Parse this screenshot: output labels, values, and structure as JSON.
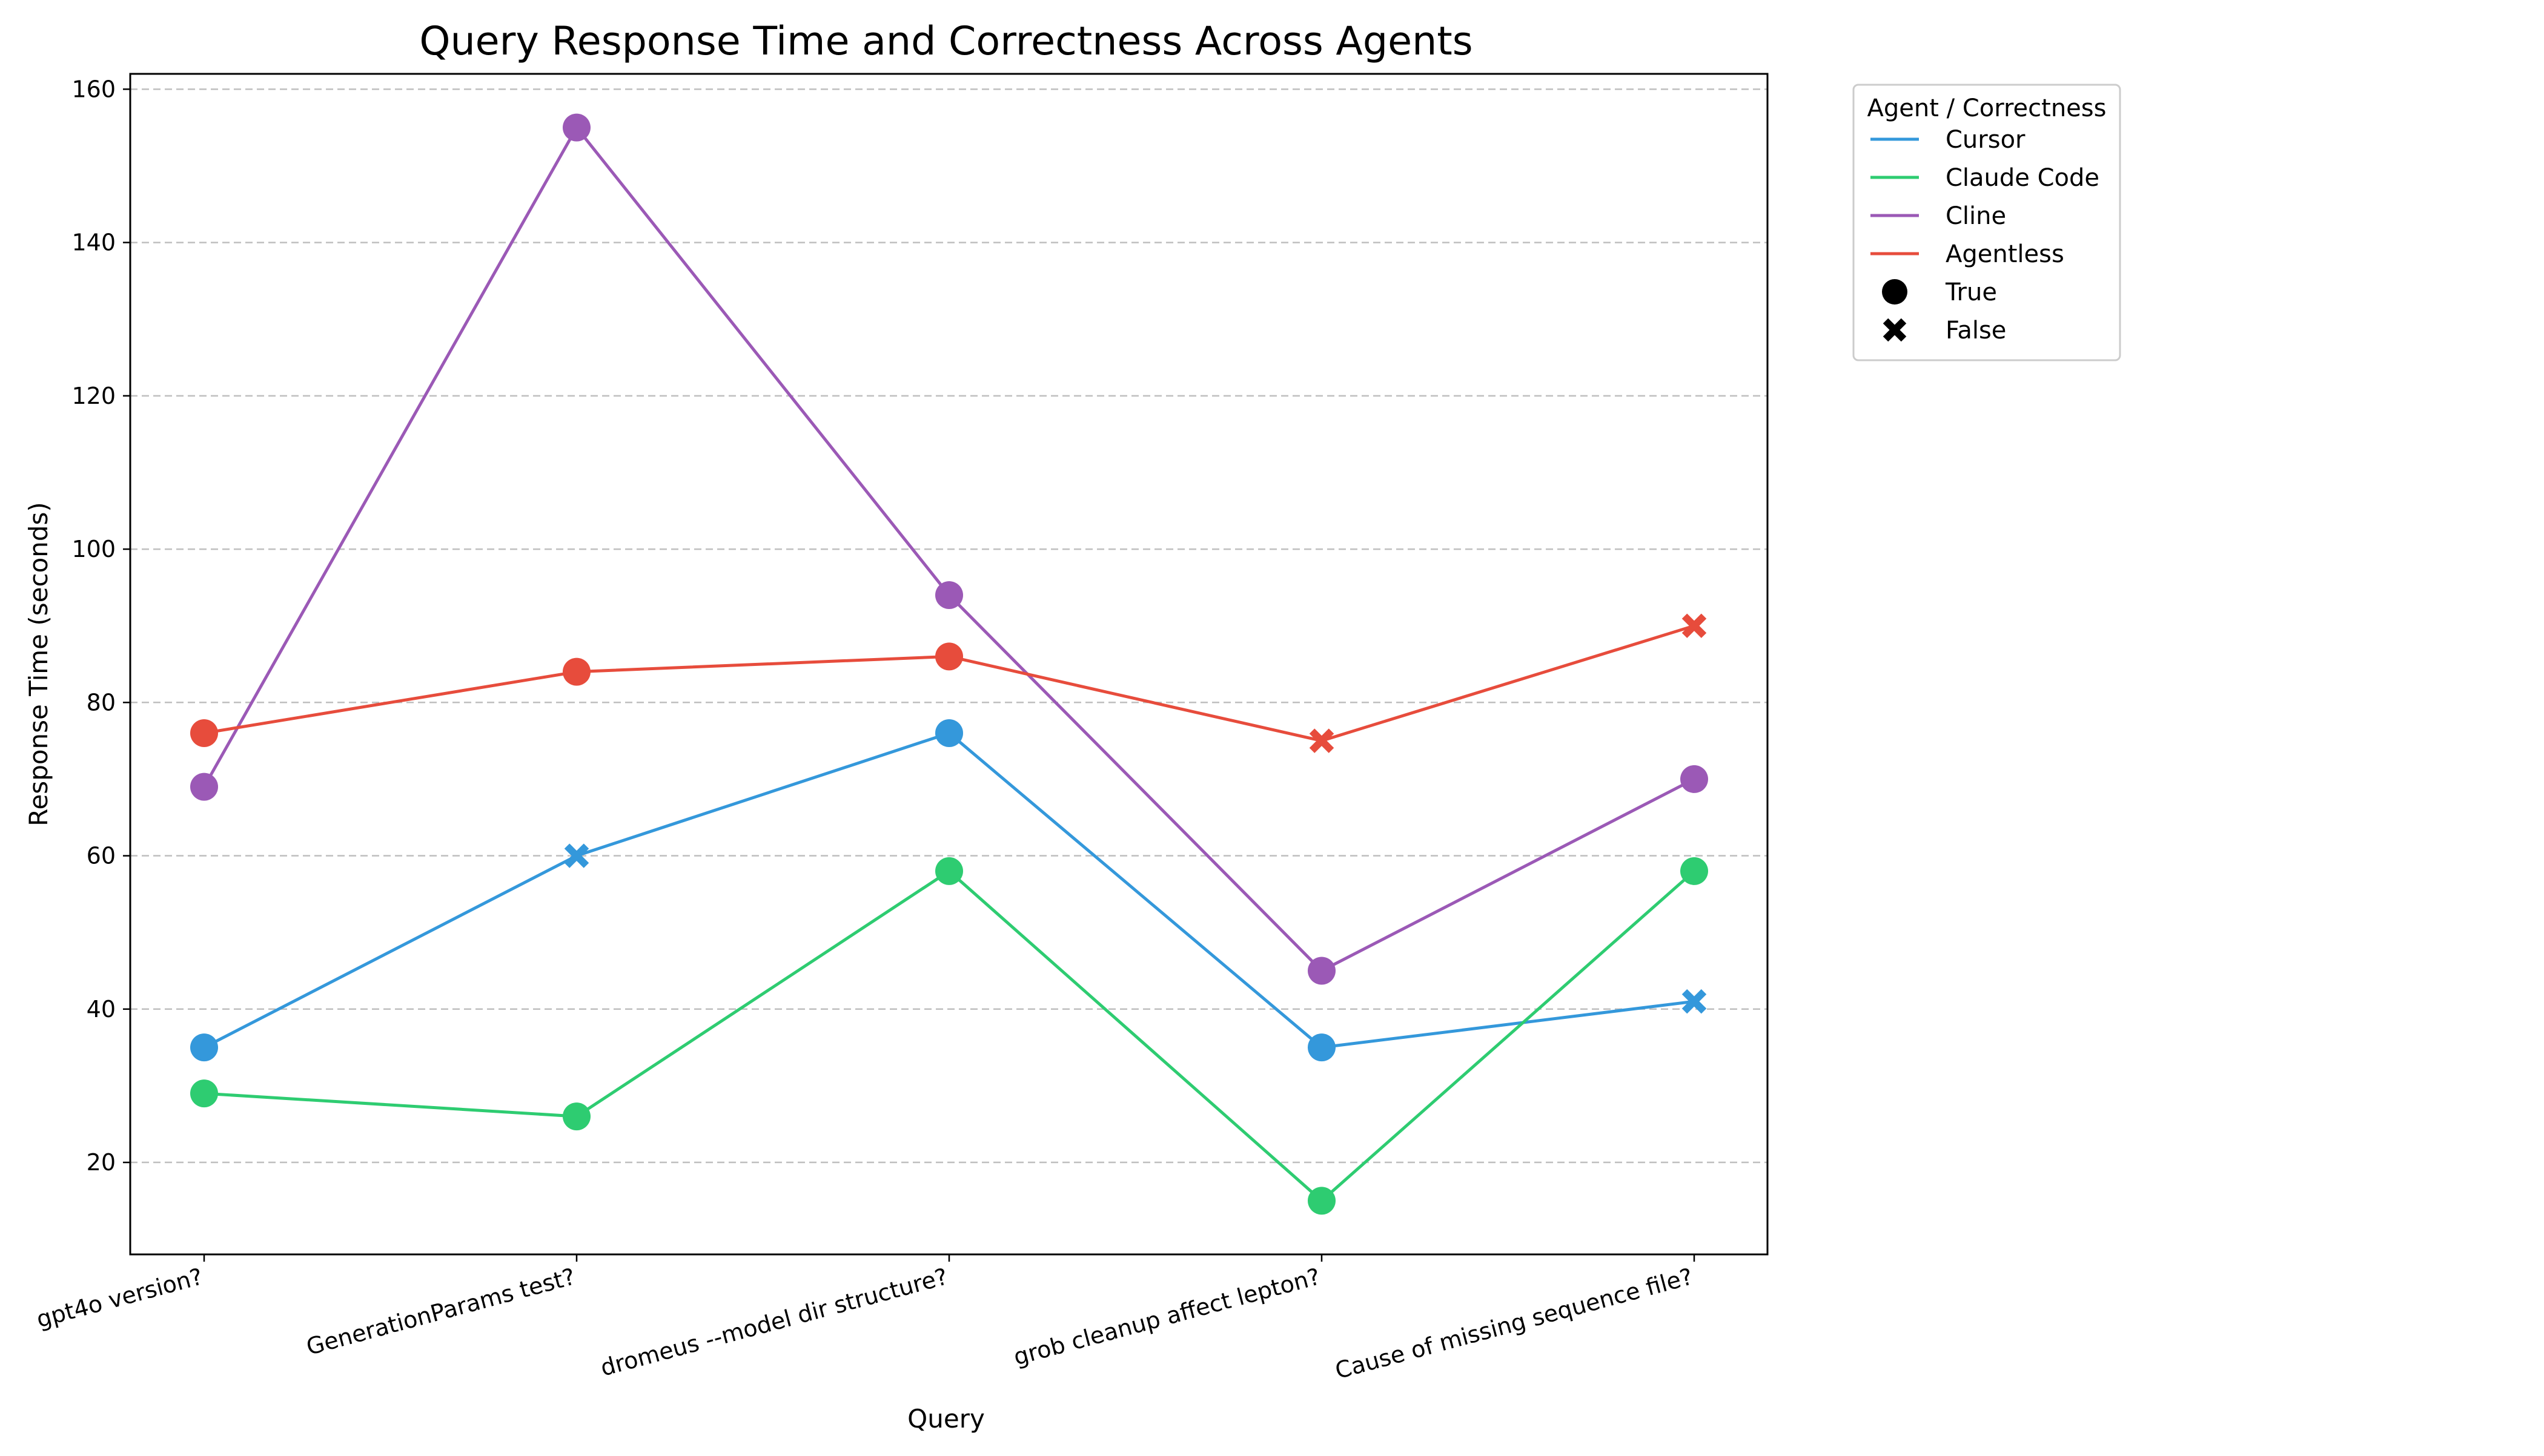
{
  "chart_data": {
    "type": "line",
    "title": "Query Response Time and Correctness Across Agents",
    "xlabel": "Query",
    "ylabel": "Response Time (seconds)",
    "categories": [
      "gpt4o version?",
      "GenerationParams test?",
      "dromeus --model dir structure?",
      "grob cleanup affect lepton?",
      "Cause of missing sequence file?"
    ],
    "ylim": [
      8,
      162
    ],
    "yticks": [
      20,
      40,
      60,
      80,
      100,
      120,
      140,
      160
    ],
    "grid": "horizontal dashed",
    "legend": {
      "title": "Agent / Correctness",
      "placement": "outside upper right",
      "marker_entries": [
        {
          "label": "True",
          "marker": "circle"
        },
        {
          "label": "False",
          "marker": "x"
        }
      ]
    },
    "series": [
      {
        "name": "Cursor",
        "color": "#3498db",
        "values": [
          35,
          60,
          76,
          35,
          41
        ],
        "correct": [
          true,
          false,
          true,
          true,
          false
        ]
      },
      {
        "name": "Claude Code",
        "color": "#2ecc71",
        "values": [
          29,
          26,
          58,
          15,
          58
        ],
        "correct": [
          true,
          true,
          true,
          true,
          true
        ]
      },
      {
        "name": "Cline",
        "color": "#9b59b6",
        "values": [
          69,
          155,
          94,
          45,
          70
        ],
        "correct": [
          true,
          true,
          true,
          true,
          true
        ]
      },
      {
        "name": "Agentless",
        "color": "#e74c3c",
        "values": [
          76,
          84,
          86,
          75,
          90
        ],
        "correct": [
          true,
          true,
          true,
          false,
          false
        ]
      }
    ]
  }
}
